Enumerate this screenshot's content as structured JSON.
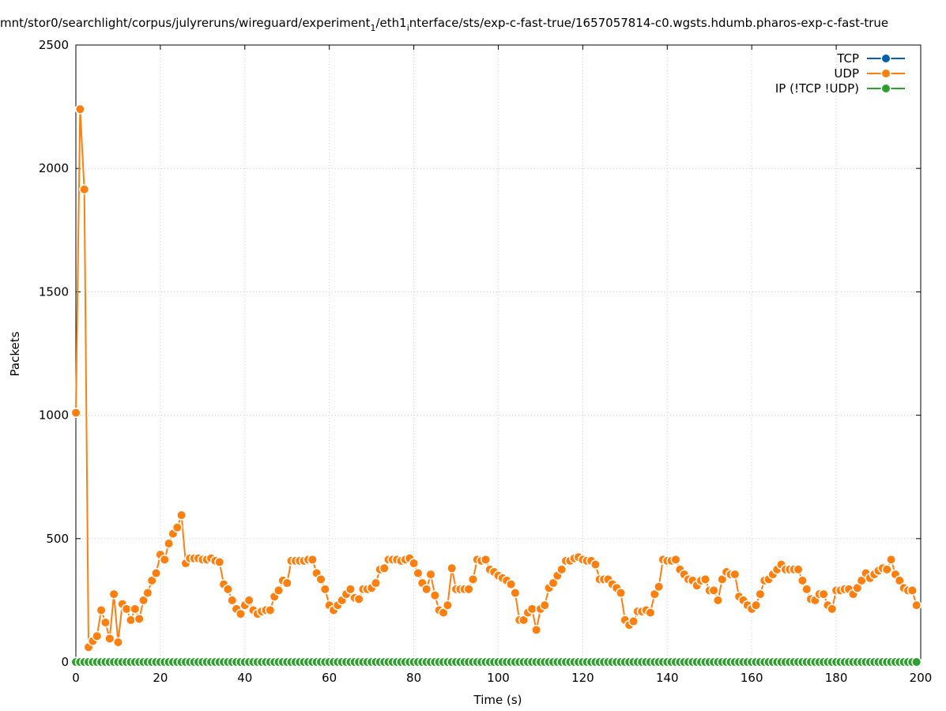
{
  "chart_data": {
    "type": "line",
    "title_parts": [
      "mnt/stor0/searchlight/corpus/julyreruns/wireguard/experiment",
      "1",
      "/eth1",
      "i",
      "nterface/sts/exp-c-fast-true/1657057814-c0.wgsts.hdumb.pharos-exp-c-fast-true"
    ],
    "x_label": "Time (s)",
    "y_label": "Packets",
    "xlim": [
      0,
      200
    ],
    "xticks": [
      0,
      20,
      40,
      60,
      80,
      100,
      120,
      140,
      160,
      180,
      200
    ],
    "ylim": [
      0,
      2500
    ],
    "yticks": [
      0,
      500,
      1000,
      1500,
      2000,
      2500
    ],
    "grid": true,
    "legend": "top-right",
    "x": [
      0,
      1,
      2,
      3,
      4,
      5,
      6,
      7,
      8,
      9,
      10,
      11,
      12,
      13,
      14,
      15,
      16,
      17,
      18,
      19,
      20,
      21,
      22,
      23,
      24,
      25,
      26,
      27,
      28,
      29,
      30,
      31,
      32,
      33,
      34,
      35,
      36,
      37,
      38,
      39,
      40,
      41,
      42,
      43,
      44,
      45,
      46,
      47,
      48,
      49,
      50,
      51,
      52,
      53,
      54,
      55,
      56,
      57,
      58,
      59,
      60,
      61,
      62,
      63,
      64,
      65,
      66,
      67,
      68,
      69,
      70,
      71,
      72,
      73,
      74,
      75,
      76,
      77,
      78,
      79,
      80,
      81,
      82,
      83,
      84,
      85,
      86,
      87,
      88,
      89,
      90,
      91,
      92,
      93,
      94,
      95,
      96,
      97,
      98,
      99,
      100,
      101,
      102,
      103,
      104,
      105,
      106,
      107,
      108,
      109,
      110,
      111,
      112,
      113,
      114,
      115,
      116,
      117,
      118,
      119,
      120,
      121,
      122,
      123,
      124,
      125,
      126,
      127,
      128,
      129,
      130,
      131,
      132,
      133,
      134,
      135,
      136,
      137,
      138,
      139,
      140,
      141,
      142,
      143,
      144,
      145,
      146,
      147,
      148,
      149,
      150,
      151,
      152,
      153,
      154,
      155,
      156,
      157,
      158,
      159,
      160,
      161,
      162,
      163,
      164,
      165,
      166,
      167,
      168,
      169,
      170,
      171,
      172,
      173,
      174,
      175,
      176,
      177,
      178,
      179,
      180,
      181,
      182,
      183,
      184,
      185,
      186,
      187,
      188,
      189,
      190,
      191,
      192,
      193,
      194,
      195,
      196,
      197,
      198,
      199
    ],
    "series": [
      {
        "name": "TCP",
        "color": "#0060ad",
        "values": [
          0,
          0,
          0,
          0,
          0,
          0,
          0,
          0,
          0,
          0,
          0,
          0,
          0,
          0,
          0,
          0,
          0,
          0,
          0,
          0,
          0,
          0,
          0,
          0,
          0,
          0,
          0,
          0,
          0,
          0,
          0,
          0,
          0,
          0,
          0,
          0,
          0,
          0,
          0,
          0,
          0,
          0,
          0,
          0,
          0,
          0,
          0,
          0,
          0,
          0,
          0,
          0,
          0,
          0,
          0,
          0,
          0,
          0,
          0,
          0,
          0,
          0,
          0,
          0,
          0,
          0,
          0,
          0,
          0,
          0,
          0,
          0,
          0,
          0,
          0,
          0,
          0,
          0,
          0,
          0,
          0,
          0,
          0,
          0,
          0,
          0,
          0,
          0,
          0,
          0,
          0,
          0,
          0,
          0,
          0,
          0,
          0,
          0,
          0,
          0,
          0,
          0,
          0,
          0,
          0,
          0,
          0,
          0,
          0,
          0,
          0,
          0,
          0,
          0,
          0,
          0,
          0,
          0,
          0,
          0,
          0,
          0,
          0,
          0,
          0,
          0,
          0,
          0,
          0,
          0,
          0,
          0,
          0,
          0,
          0,
          0,
          0,
          0,
          0,
          0,
          0,
          0,
          0,
          0,
          0,
          0,
          0,
          0,
          0,
          0,
          0,
          0,
          0,
          0,
          0,
          0,
          0,
          0,
          0,
          0,
          0,
          0,
          0,
          0,
          0,
          0,
          0,
          0,
          0,
          0,
          0,
          0,
          0,
          0,
          0,
          0,
          0,
          0,
          0,
          0,
          0,
          0,
          0,
          0,
          0,
          0,
          0,
          0,
          0,
          0,
          0,
          0,
          0,
          0,
          0,
          0,
          0,
          0,
          0,
          0
        ]
      },
      {
        "name": "UDP",
        "color": "#ff7f0e",
        "values": [
          1010,
          2240,
          1915,
          60,
          85,
          105,
          210,
          160,
          95,
          275,
          80,
          235,
          215,
          170,
          215,
          175,
          250,
          280,
          330,
          360,
          435,
          415,
          480,
          520,
          545,
          595,
          400,
          420,
          420,
          420,
          415,
          415,
          420,
          410,
          405,
          315,
          295,
          250,
          215,
          195,
          230,
          250,
          210,
          195,
          205,
          210,
          210,
          265,
          290,
          330,
          320,
          410,
          410,
          410,
          410,
          415,
          415,
          360,
          335,
          295,
          230,
          210,
          230,
          250,
          275,
          295,
          260,
          255,
          295,
          295,
          300,
          320,
          375,
          380,
          415,
          415,
          415,
          410,
          415,
          420,
          400,
          360,
          320,
          295,
          355,
          270,
          210,
          200,
          230,
          380,
          295,
          295,
          295,
          295,
          335,
          415,
          410,
          415,
          375,
          365,
          350,
          340,
          330,
          315,
          280,
          170,
          170,
          200,
          215,
          130,
          215,
          230,
          300,
          320,
          350,
          375,
          410,
          410,
          420,
          425,
          415,
          410,
          410,
          395,
          335,
          335,
          335,
          315,
          300,
          280,
          170,
          150,
          165,
          205,
          205,
          210,
          200,
          275,
          305,
          415,
          410,
          410,
          415,
          375,
          355,
          335,
          330,
          310,
          330,
          335,
          290,
          290,
          250,
          335,
          365,
          355,
          355,
          265,
          250,
          230,
          215,
          230,
          275,
          330,
          335,
          355,
          375,
          395,
          375,
          375,
          375,
          375,
          330,
          295,
          255,
          250,
          275,
          275,
          230,
          215,
          290,
          290,
          295,
          295,
          275,
          300,
          330,
          360,
          340,
          355,
          370,
          380,
          375,
          415,
          355,
          330,
          300,
          290,
          290,
          230
        ]
      },
      {
        "name": "IP (!TCP  !UDP)",
        "color": "#2ca02c",
        "values": [
          0,
          0,
          0,
          0,
          0,
          0,
          0,
          0,
          0,
          0,
          0,
          0,
          0,
          0,
          0,
          0,
          0,
          0,
          0,
          0,
          0,
          0,
          0,
          0,
          0,
          0,
          0,
          0,
          0,
          0,
          0,
          0,
          0,
          0,
          0,
          0,
          0,
          0,
          0,
          0,
          0,
          0,
          0,
          0,
          0,
          0,
          0,
          0,
          0,
          0,
          0,
          0,
          0,
          0,
          0,
          0,
          0,
          0,
          0,
          0,
          0,
          0,
          0,
          0,
          0,
          0,
          0,
          0,
          0,
          0,
          0,
          0,
          0,
          0,
          0,
          0,
          0,
          0,
          0,
          0,
          0,
          0,
          0,
          0,
          0,
          0,
          0,
          0,
          0,
          0,
          0,
          0,
          0,
          0,
          0,
          0,
          0,
          0,
          0,
          0,
          0,
          0,
          0,
          0,
          0,
          0,
          0,
          0,
          0,
          0,
          0,
          0,
          0,
          0,
          0,
          0,
          0,
          0,
          0,
          0,
          0,
          0,
          0,
          0,
          0,
          0,
          0,
          0,
          0,
          0,
          0,
          0,
          0,
          0,
          0,
          0,
          0,
          0,
          0,
          0,
          0,
          0,
          0,
          0,
          0,
          0,
          0,
          0,
          0,
          0,
          0,
          0,
          0,
          0,
          0,
          0,
          0,
          0,
          0,
          0,
          0,
          0,
          0,
          0,
          0,
          0,
          0,
          0,
          0,
          0,
          0,
          0,
          0,
          0,
          0,
          0,
          0,
          0,
          0,
          0,
          0,
          0,
          0,
          0,
          0,
          0,
          0,
          0,
          0,
          0,
          0,
          0,
          0,
          0,
          0,
          0,
          0,
          0,
          0,
          0
        ]
      }
    ]
  }
}
